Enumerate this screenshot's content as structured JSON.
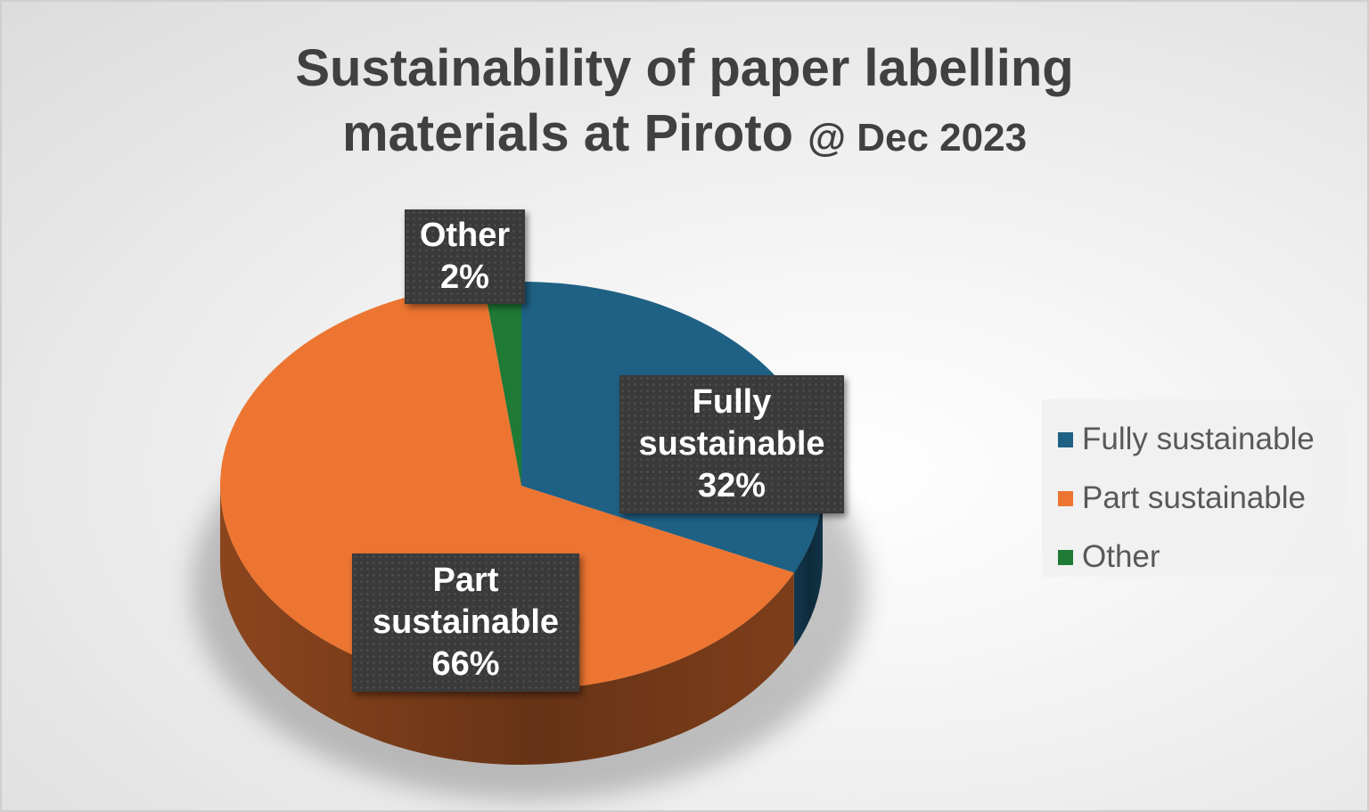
{
  "chart_data": {
    "type": "pie",
    "title": "Sustainability of paper labelling materials at Piroto",
    "title_suffix": "@ Dec 2023",
    "slices": [
      {
        "label": "Fully sustainable",
        "value": 32,
        "display": "32%",
        "color": "#1f6184"
      },
      {
        "label": "Part sustainable",
        "value": 66,
        "display": "66%",
        "color": "#ed7532"
      },
      {
        "label": "Other",
        "value": 2,
        "display": "2%",
        "color": "#1e7a35"
      }
    ],
    "legend": {
      "placement": "right",
      "entries": [
        "Fully sustainable",
        "Part sustainable",
        "Other"
      ]
    },
    "style": "3d"
  }
}
